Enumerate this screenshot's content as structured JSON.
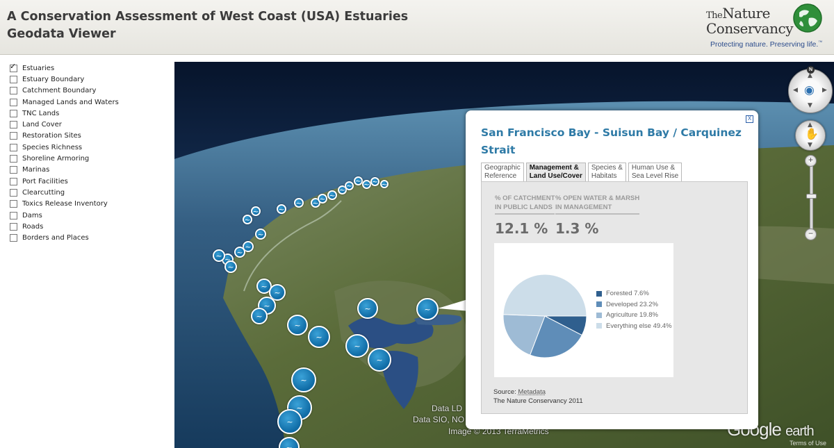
{
  "header": {
    "title_line1": "A Conservation Assessment of West Coast (USA) Estuaries",
    "title_line2": "Geodata Viewer",
    "logo": {
      "the": "The",
      "nature": "Nature",
      "conservancy": "Conservancy",
      "tagline": "Protecting nature. Preserving life.",
      "tm": "™"
    }
  },
  "layers": [
    {
      "label": "Estuaries",
      "checked": true
    },
    {
      "label": "Estuary Boundary",
      "checked": false
    },
    {
      "label": "Catchment Boundary",
      "checked": false
    },
    {
      "label": "Managed Lands and Waters",
      "checked": false
    },
    {
      "label": "TNC Lands",
      "checked": false
    },
    {
      "label": "Land Cover",
      "checked": false
    },
    {
      "label": "Restoration Sites",
      "checked": false
    },
    {
      "label": "Species Richness",
      "checked": false
    },
    {
      "label": "Shoreline Armoring",
      "checked": false
    },
    {
      "label": "Marinas",
      "checked": false
    },
    {
      "label": "Port Facilities",
      "checked": false
    },
    {
      "label": "Clearcutting",
      "checked": false
    },
    {
      "label": "Toxics Release Inventory",
      "checked": false
    },
    {
      "label": "Dams",
      "checked": false
    },
    {
      "label": "Roads",
      "checked": false
    },
    {
      "label": "Borders and Places",
      "checked": false
    }
  ],
  "map": {
    "attribution_1": "Data LD",
    "attribution_2": "Data SIO, NO",
    "attribution_3": "Image © 2013 TerraMetrics",
    "google": "Google",
    "earth": "earth",
    "terms": "Terms of Use",
    "north": "N",
    "colors": {
      "ocean": "#1b3f66",
      "land": "#5f6f3c",
      "bay": "#2b4f84"
    }
  },
  "popup": {
    "title": "San Francisco Bay - Suisun Bay / Carquinez Strait",
    "close": "X",
    "tabs": [
      {
        "label": "Geographic\nReference",
        "active": false
      },
      {
        "label": "Management &\nLand Use/Cover",
        "active": true
      },
      {
        "label": "Species &\nHabitats",
        "active": false
      },
      {
        "label": "Human Use &\nSea Level Rise",
        "active": false
      }
    ],
    "stats": [
      {
        "label": "% OF CATCHMENT\nIN PUBLIC LANDS",
        "value": "12.1 %"
      },
      {
        "label": "% OPEN WATER & MARSH\nIN MANAGEMENT",
        "value": "1.3 %"
      }
    ],
    "source_prefix": "Source:",
    "source_link": "Metadata",
    "source_org": "The Nature Conservancy 2011"
  },
  "chart_data": {
    "type": "pie",
    "title": "",
    "legend_position": "right",
    "slices": [
      {
        "label": "Forested 7.6%",
        "value": 7.6,
        "color": "#2f5f8e"
      },
      {
        "label": "Developed 23.2%",
        "value": 23.2,
        "color": "#5f8db8"
      },
      {
        "label": "Agriculture 19.8%",
        "value": 19.8,
        "color": "#9ebbd5"
      },
      {
        "label": "Everything else 49.4%",
        "value": 49.4,
        "color": "#ccdde9"
      }
    ]
  }
}
